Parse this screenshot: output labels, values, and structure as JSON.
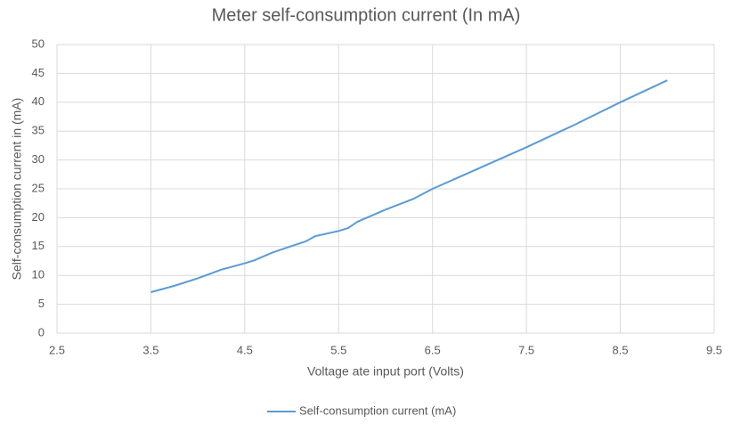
{
  "chart_data": {
    "type": "line",
    "title": "Meter self-consumption current (In mA)",
    "x_label": "Voltage ate input port (Volts)",
    "y_label": "Self-consumption current in (mA)",
    "x": [
      3.5,
      3.75,
      4.0,
      4.25,
      4.5,
      4.6,
      4.8,
      5.0,
      5.15,
      5.25,
      5.5,
      5.6,
      5.7,
      6.0,
      6.3,
      6.5,
      7.0,
      7.5,
      8.0,
      8.5,
      9.0
    ],
    "series": [
      {
        "name": "Self-consumption current (mA)",
        "color": "#5b9bd5",
        "values": [
          7.1,
          8.2,
          9.5,
          11.0,
          12.1,
          12.6,
          14.0,
          15.1,
          15.9,
          16.8,
          17.7,
          18.2,
          19.3,
          21.4,
          23.3,
          25.0,
          28.6,
          32.2,
          36.0,
          40.0,
          43.8
        ]
      }
    ],
    "xlim": [
      2.5,
      9.5
    ],
    "xticks": [
      2.5,
      3.5,
      4.5,
      5.5,
      6.5,
      7.5,
      8.5,
      9.5
    ],
    "ylim": [
      0,
      50
    ],
    "yticks": [
      0,
      5,
      10,
      15,
      20,
      25,
      30,
      35,
      40,
      45,
      50
    ],
    "grid": true,
    "legend": "bottom"
  }
}
